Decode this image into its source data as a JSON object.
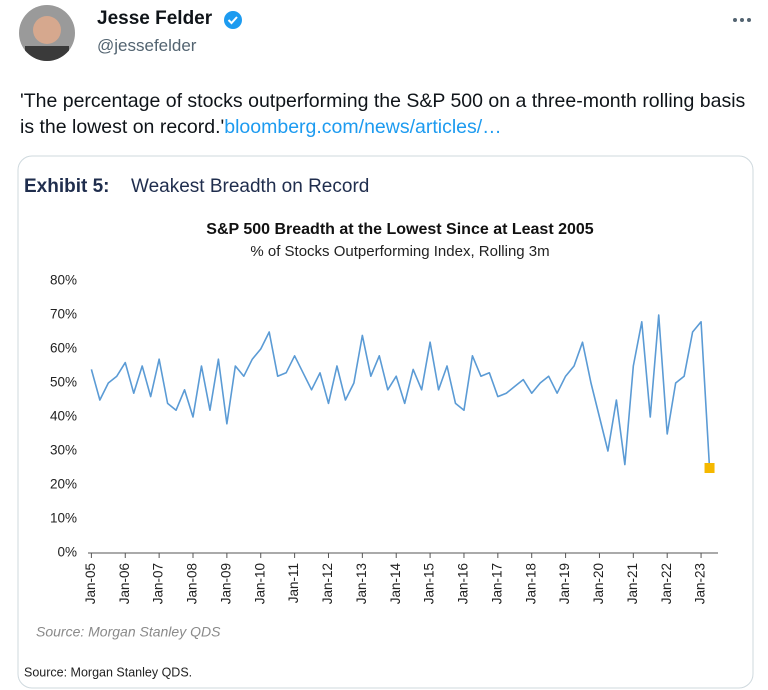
{
  "user": {
    "name": "Jesse Felder",
    "handle": "@jessefelder"
  },
  "tweet": {
    "text": "'The percentage of stocks outperforming the S&P 500 on a three-month rolling basis is the lowest on record.'",
    "link": "bloomberg.com/news/articles/…"
  },
  "card": {
    "exhibit_label": "Exhibit 5:",
    "exhibit_title": "Weakest Breadth on Record",
    "footer": "Source: Morgan Stanley QDS."
  },
  "chart_data": {
    "type": "line",
    "title": "S&P 500 Breadth at the Lowest Since at Least 2005",
    "subtitle": "% of Stocks Outperforming  Index, Rolling 3m",
    "source": "Source: Morgan Stanley QDS",
    "x": [
      2005,
      2005.25,
      2005.5,
      2005.75,
      2006,
      2006.25,
      2006.5,
      2006.75,
      2007,
      2007.25,
      2007.5,
      2007.75,
      2008,
      2008.25,
      2008.5,
      2008.75,
      2009,
      2009.25,
      2009.5,
      2009.75,
      2010,
      2010.25,
      2010.5,
      2010.75,
      2011,
      2011.25,
      2011.5,
      2011.75,
      2012,
      2012.25,
      2012.5,
      2012.75,
      2013,
      2013.25,
      2013.5,
      2013.75,
      2014,
      2014.25,
      2014.5,
      2014.75,
      2015,
      2015.25,
      2015.5,
      2015.75,
      2016,
      2016.25,
      2016.5,
      2016.75,
      2017,
      2017.25,
      2017.5,
      2017.75,
      2018,
      2018.25,
      2018.5,
      2018.75,
      2019,
      2019.25,
      2019.5,
      2019.75,
      2020,
      2020.25,
      2020.5,
      2020.75,
      2021,
      2021.25,
      2021.5,
      2021.75,
      2022,
      2022.25,
      2022.5,
      2022.75,
      2023,
      2023.25
    ],
    "series": [
      {
        "name": "% of Stocks Outperforming",
        "color": "#5b9bd5",
        "values": [
          54,
          45,
          50,
          52,
          56,
          47,
          55,
          46,
          57,
          44,
          42,
          48,
          40,
          55,
          42,
          57,
          38,
          55,
          52,
          57,
          60,
          65,
          52,
          53,
          58,
          53,
          48,
          53,
          44,
          55,
          45,
          50,
          64,
          52,
          58,
          48,
          52,
          44,
          54,
          48,
          62,
          48,
          55,
          44,
          42,
          58,
          52,
          53,
          46,
          47,
          49,
          51,
          47,
          50,
          52,
          47,
          52,
          55,
          62,
          50,
          40,
          30,
          45,
          26,
          55,
          68,
          40,
          70,
          35,
          50,
          52,
          65,
          68,
          25
        ]
      }
    ],
    "highlight_color": "#f5b800",
    "xlim": [
      2004.9,
      2023.5
    ],
    "xticks": [
      {
        "value": 2005,
        "label": "Jan-05"
      },
      {
        "value": 2006,
        "label": "Jan-06"
      },
      {
        "value": 2007,
        "label": "Jan-07"
      },
      {
        "value": 2008,
        "label": "Jan-08"
      },
      {
        "value": 2009,
        "label": "Jan-09"
      },
      {
        "value": 2010,
        "label": "Jan-10"
      },
      {
        "value": 2011,
        "label": "Jan-11"
      },
      {
        "value": 2012,
        "label": "Jan-12"
      },
      {
        "value": 2013,
        "label": "Jan-13"
      },
      {
        "value": 2014,
        "label": "Jan-14"
      },
      {
        "value": 2015,
        "label": "Jan-15"
      },
      {
        "value": 2016,
        "label": "Jan-16"
      },
      {
        "value": 2017,
        "label": "Jan-17"
      },
      {
        "value": 2018,
        "label": "Jan-18"
      },
      {
        "value": 2019,
        "label": "Jan-19"
      },
      {
        "value": 2020,
        "label": "Jan-20"
      },
      {
        "value": 2021,
        "label": "Jan-21"
      },
      {
        "value": 2022,
        "label": "Jan-22"
      },
      {
        "value": 2023,
        "label": "Jan-23"
      }
    ],
    "ylim": [
      0,
      80
    ],
    "yticks": [
      {
        "value": 0,
        "label": "0%"
      },
      {
        "value": 10,
        "label": "10%"
      },
      {
        "value": 20,
        "label": "20%"
      },
      {
        "value": 30,
        "label": "30%"
      },
      {
        "value": 40,
        "label": "40%"
      },
      {
        "value": 50,
        "label": "50%"
      },
      {
        "value": 60,
        "label": "60%"
      },
      {
        "value": 70,
        "label": "70%"
      },
      {
        "value": 80,
        "label": "80%"
      }
    ],
    "grid": false
  }
}
